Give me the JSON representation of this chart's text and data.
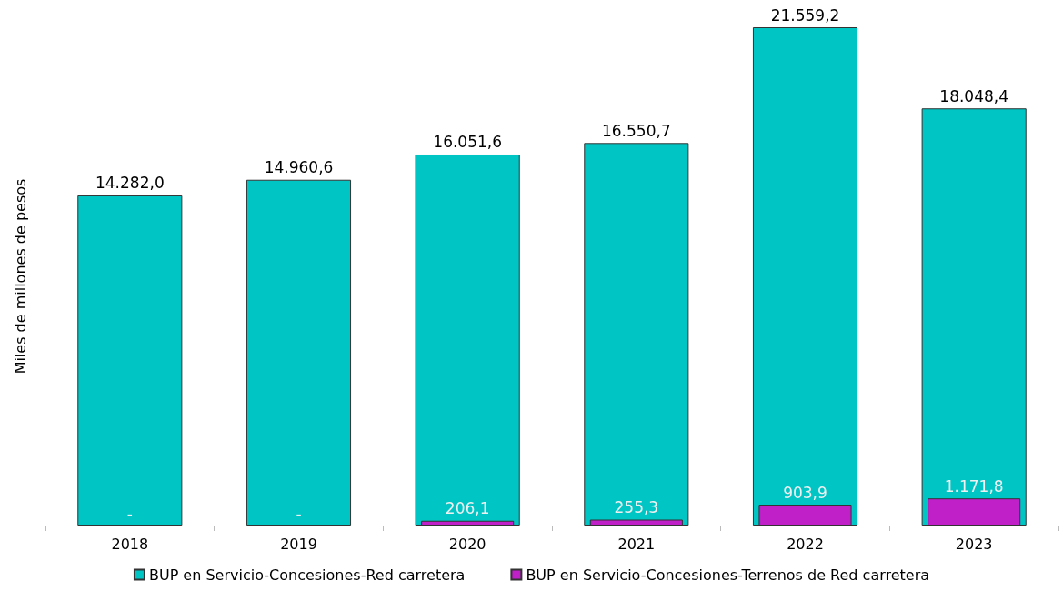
{
  "chart_data": {
    "type": "bar",
    "ylabel": "Miles de millones de pesos",
    "categories": [
      "2018",
      "2019",
      "2020",
      "2021",
      "2022",
      "2023"
    ],
    "series": [
      {
        "name": "BUP en Servicio-Concesiones-Red carretera",
        "color": "#00c5c5",
        "values": [
          14282.0,
          14960.6,
          16051.6,
          16550.7,
          21559.2,
          18048.4
        ],
        "value_labels": [
          "14.282,0",
          "14.960,6",
          "16.051,6",
          "16.550,7",
          "21.559,2",
          "18.048,4"
        ]
      },
      {
        "name": "BUP en Servicio-Concesiones-Terrenos de Red carretera",
        "color": "#c020c8",
        "values": [
          0,
          0,
          206.1,
          255.3,
          903.9,
          1171.8
        ],
        "value_labels": [
          "-",
          "-",
          "206,1",
          "255,3",
          "903,9",
          "1.171,8"
        ]
      }
    ],
    "legend": "bottom",
    "grid": false
  }
}
